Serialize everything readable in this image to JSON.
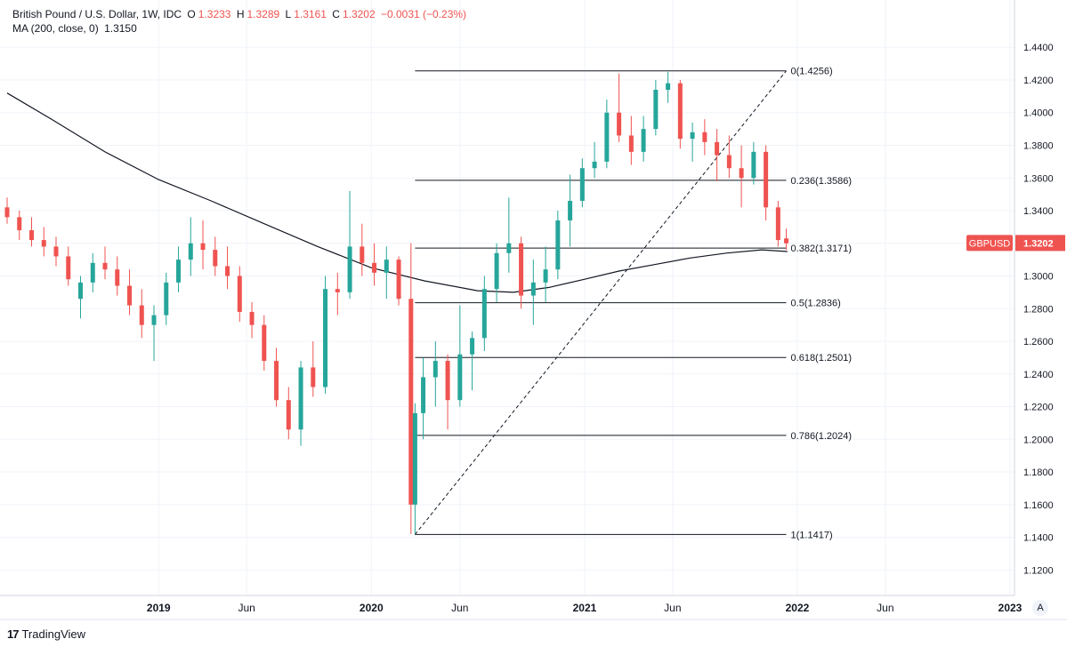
{
  "legend": {
    "symbol": "British Pound / U.S. Dollar, 1W, IDC",
    "open_label": "O",
    "open": "1.3233",
    "high_label": "H",
    "high": "1.3289",
    "low_label": "L",
    "low": "1.3161",
    "close_label": "C",
    "close": "1.3202",
    "change": "−0.0031 (−0.23%)",
    "ma_label": "MA (200, close, 0)",
    "ma_value": "1.3150"
  },
  "price_tag": {
    "symbol": "GBPUSD",
    "price": "1.3202",
    "color": "#ef5350"
  },
  "branding": {
    "name": "TradingView"
  },
  "auto_button": "A",
  "colors": {
    "up": "#26a69a",
    "down": "#ef5350",
    "grid": "#f0f3fa",
    "line": "#131722"
  },
  "chart_data": {
    "type": "candlestick",
    "symbol": "GBPUSD",
    "interval": "1W",
    "y_axis": {
      "ticks": [
        1.12,
        1.14,
        1.16,
        1.18,
        1.2,
        1.22,
        1.24,
        1.26,
        1.28,
        1.3,
        1.32,
        1.34,
        1.36,
        1.38,
        1.4,
        1.42,
        1.44
      ],
      "tick_labels": [
        "1.1200",
        "1.1400",
        "1.1600",
        "1.1800",
        "1.2000",
        "1.2200",
        "1.2400",
        "1.2600",
        "1.2800",
        "1.3000",
        "1.3200",
        "1.3400",
        "1.3600",
        "1.3800",
        "1.4000",
        "1.4200",
        "1.4400"
      ],
      "range": [
        1.112,
        1.457
      ]
    },
    "x_axis": {
      "labels": [
        "2019",
        "Jun",
        "2020",
        "Jun",
        "2021",
        "Jun",
        "2022",
        "Jun",
        "2023"
      ],
      "dates": [
        "2019-01-01",
        "2019-06-01",
        "2020-01-01",
        "2020-06-01",
        "2021-01-01",
        "2021-06-01",
        "2022-01-01",
        "2022-06-01",
        "2023-01-01"
      ],
      "bold": [
        true,
        false,
        true,
        false,
        true,
        false,
        true,
        false,
        true
      ],
      "range": [
        "2018-04-16",
        "2023-01-01"
      ]
    },
    "fibonacci": {
      "start": {
        "date": "2020-03-16",
        "price": 1.1417
      },
      "end": {
        "date": "2021-12-13",
        "price": 1.4256
      },
      "levels": [
        {
          "ratio": "0",
          "price": "1.4256"
        },
        {
          "ratio": "0.236",
          "price": "1.3586"
        },
        {
          "ratio": "0.382",
          "price": "1.3171"
        },
        {
          "ratio": "0.5",
          "price": "1.2836"
        },
        {
          "ratio": "0.618",
          "price": "1.2501"
        },
        {
          "ratio": "0.786",
          "price": "1.2024"
        },
        {
          "ratio": "1",
          "price": "1.1417"
        }
      ]
    },
    "moving_average": {
      "name": "MA (200, close, 0)",
      "points": [
        [
          "2018-04-16",
          1.412
        ],
        [
          "2018-07-01",
          1.396
        ],
        [
          "2018-10-01",
          1.376
        ],
        [
          "2019-01-01",
          1.359
        ],
        [
          "2019-04-01",
          1.346
        ],
        [
          "2019-07-01",
          1.332
        ],
        [
          "2019-10-01",
          1.318
        ],
        [
          "2020-01-01",
          1.305
        ],
        [
          "2020-04-01",
          1.297
        ],
        [
          "2020-07-01",
          1.291
        ],
        [
          "2020-09-01",
          1.29
        ],
        [
          "2020-11-01",
          1.293
        ],
        [
          "2021-01-01",
          1.298
        ],
        [
          "2021-03-01",
          1.303
        ],
        [
          "2021-05-01",
          1.307
        ],
        [
          "2021-07-01",
          1.311
        ],
        [
          "2021-09-01",
          1.314
        ],
        [
          "2021-11-01",
          1.316
        ],
        [
          "2021-12-15",
          1.315
        ]
      ]
    },
    "candles": [
      [
        "2018-04-16",
        1.342,
        1.348,
        1.332,
        1.336
      ],
      [
        "2018-05-07",
        1.336,
        1.34,
        1.322,
        1.328
      ],
      [
        "2018-05-28",
        1.328,
        1.336,
        1.318,
        1.322
      ],
      [
        "2018-06-18",
        1.322,
        1.33,
        1.312,
        1.318
      ],
      [
        "2018-07-09",
        1.318,
        1.324,
        1.306,
        1.312
      ],
      [
        "2018-07-30",
        1.312,
        1.318,
        1.294,
        1.298
      ],
      [
        "2018-08-20",
        1.286,
        1.3,
        1.274,
        1.296
      ],
      [
        "2018-09-10",
        1.296,
        1.314,
        1.29,
        1.308
      ],
      [
        "2018-10-01",
        1.308,
        1.318,
        1.298,
        1.304
      ],
      [
        "2018-10-22",
        1.304,
        1.312,
        1.288,
        1.294
      ],
      [
        "2018-11-12",
        1.294,
        1.304,
        1.276,
        1.282
      ],
      [
        "2018-12-03",
        1.282,
        1.292,
        1.262,
        1.27
      ],
      [
        "2018-12-24",
        1.27,
        1.282,
        1.248,
        1.276
      ],
      [
        "2019-01-14",
        1.276,
        1.302,
        1.27,
        1.296
      ],
      [
        "2019-02-04",
        1.296,
        1.318,
        1.29,
        1.31
      ],
      [
        "2019-02-25",
        1.31,
        1.336,
        1.3,
        1.32
      ],
      [
        "2019-03-18",
        1.32,
        1.334,
        1.304,
        1.316
      ],
      [
        "2019-04-08",
        1.316,
        1.324,
        1.3,
        1.306
      ],
      [
        "2019-04-29",
        1.306,
        1.318,
        1.292,
        1.3
      ],
      [
        "2019-05-20",
        1.3,
        1.306,
        1.272,
        1.278
      ],
      [
        "2019-06-10",
        1.278,
        1.284,
        1.262,
        1.27
      ],
      [
        "2019-07-01",
        1.27,
        1.276,
        1.242,
        1.248
      ],
      [
        "2019-07-22",
        1.248,
        1.256,
        1.22,
        1.224
      ],
      [
        "2019-08-12",
        1.224,
        1.232,
        1.2,
        1.206
      ],
      [
        "2019-09-02",
        1.206,
        1.248,
        1.196,
        1.244
      ],
      [
        "2019-09-23",
        1.244,
        1.26,
        1.226,
        1.232
      ],
      [
        "2019-10-14",
        1.232,
        1.3,
        1.228,
        1.292
      ],
      [
        "2019-11-04",
        1.292,
        1.302,
        1.276,
        1.29
      ],
      [
        "2019-11-25",
        1.29,
        1.352,
        1.286,
        1.318
      ],
      [
        "2019-12-16",
        1.318,
        1.332,
        1.3,
        1.308
      ],
      [
        "2020-01-06",
        1.308,
        1.32,
        1.294,
        1.302
      ],
      [
        "2020-01-27",
        1.302,
        1.318,
        1.286,
        1.31
      ],
      [
        "2020-02-17",
        1.31,
        1.312,
        1.282,
        1.286
      ],
      [
        "2020-03-09",
        1.286,
        1.32,
        1.142,
        1.16
      ],
      [
        "2020-03-16",
        1.16,
        1.222,
        1.142,
        1.216
      ],
      [
        "2020-03-30",
        1.216,
        1.25,
        1.2,
        1.238
      ],
      [
        "2020-04-20",
        1.238,
        1.26,
        1.22,
        1.248
      ],
      [
        "2020-05-11",
        1.248,
        1.252,
        1.206,
        1.224
      ],
      [
        "2020-06-01",
        1.224,
        1.282,
        1.22,
        1.252
      ],
      [
        "2020-06-22",
        1.252,
        1.266,
        1.23,
        1.262
      ],
      [
        "2020-07-13",
        1.262,
        1.3,
        1.254,
        1.292
      ],
      [
        "2020-08-03",
        1.292,
        1.32,
        1.284,
        1.314
      ],
      [
        "2020-08-24",
        1.314,
        1.348,
        1.302,
        1.32
      ],
      [
        "2020-09-14",
        1.32,
        1.324,
        1.28,
        1.288
      ],
      [
        "2020-10-05",
        1.288,
        1.31,
        1.27,
        1.296
      ],
      [
        "2020-10-26",
        1.296,
        1.318,
        1.284,
        1.304
      ],
      [
        "2020-11-16",
        1.304,
        1.34,
        1.298,
        1.334
      ],
      [
        "2020-12-07",
        1.334,
        1.362,
        1.318,
        1.346
      ],
      [
        "2020-12-28",
        1.346,
        1.372,
        1.342,
        1.366
      ],
      [
        "2021-01-18",
        1.366,
        1.382,
        1.36,
        1.37
      ],
      [
        "2021-02-08",
        1.37,
        1.408,
        1.366,
        1.4
      ],
      [
        "2021-03-01",
        1.4,
        1.424,
        1.382,
        1.386
      ],
      [
        "2021-03-22",
        1.386,
        1.398,
        1.368,
        1.376
      ],
      [
        "2021-04-12",
        1.376,
        1.398,
        1.37,
        1.39
      ],
      [
        "2021-05-03",
        1.39,
        1.42,
        1.386,
        1.414
      ],
      [
        "2021-05-24",
        1.414,
        1.425,
        1.406,
        1.418
      ],
      [
        "2021-06-14",
        1.418,
        1.42,
        1.378,
        1.384
      ],
      [
        "2021-07-05",
        1.384,
        1.394,
        1.37,
        1.388
      ],
      [
        "2021-07-26",
        1.388,
        1.396,
        1.374,
        1.382
      ],
      [
        "2021-08-16",
        1.382,
        1.39,
        1.358,
        1.374
      ],
      [
        "2021-09-06",
        1.374,
        1.386,
        1.36,
        1.366
      ],
      [
        "2021-09-27",
        1.366,
        1.38,
        1.342,
        1.36
      ],
      [
        "2021-10-18",
        1.36,
        1.382,
        1.356,
        1.376
      ],
      [
        "2021-11-08",
        1.376,
        1.38,
        1.334,
        1.342
      ],
      [
        "2021-11-29",
        1.342,
        1.346,
        1.318,
        1.322
      ],
      [
        "2021-12-13",
        1.323,
        1.329,
        1.316,
        1.32
      ]
    ]
  }
}
